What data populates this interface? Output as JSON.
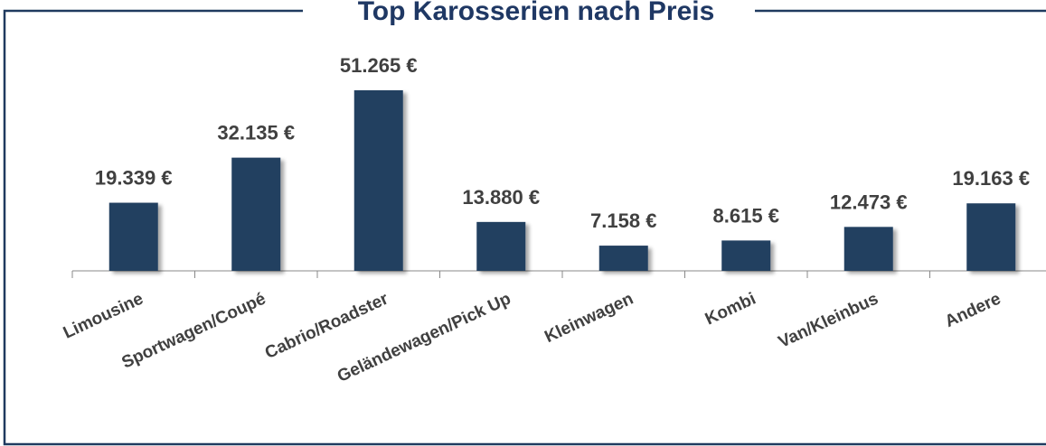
{
  "chart_data": {
    "type": "bar",
    "title": "Top Karosserien nach Preis",
    "categories": [
      "Limousine",
      "Sportwagen/Coupé",
      "Cabrio/Roadster",
      "Geländewagen/Pick Up",
      "Kleinwagen",
      "Kombi",
      "Van/Kleinbus",
      "Andere"
    ],
    "values": [
      19339,
      32135,
      51265,
      13880,
      7158,
      8615,
      12473,
      19163
    ],
    "value_labels": [
      "19.339 €",
      "32.135 €",
      "51.265 €",
      "13.880 €",
      "7.158 €",
      "8.615 €",
      "12.473 €",
      "19.163 €"
    ],
    "color": "#243f60"
  }
}
